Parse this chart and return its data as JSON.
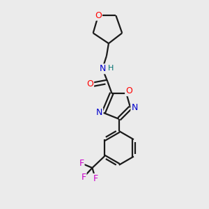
{
  "background_color": "#ebebeb",
  "bond_color": "#1a1a1a",
  "atom_colors": {
    "O": "#ff0000",
    "N": "#0000cc",
    "F": "#cc00cc",
    "C": "#1a1a1a",
    "H": "#007070"
  },
  "figsize": [
    3.0,
    3.0
  ],
  "dpi": 100
}
